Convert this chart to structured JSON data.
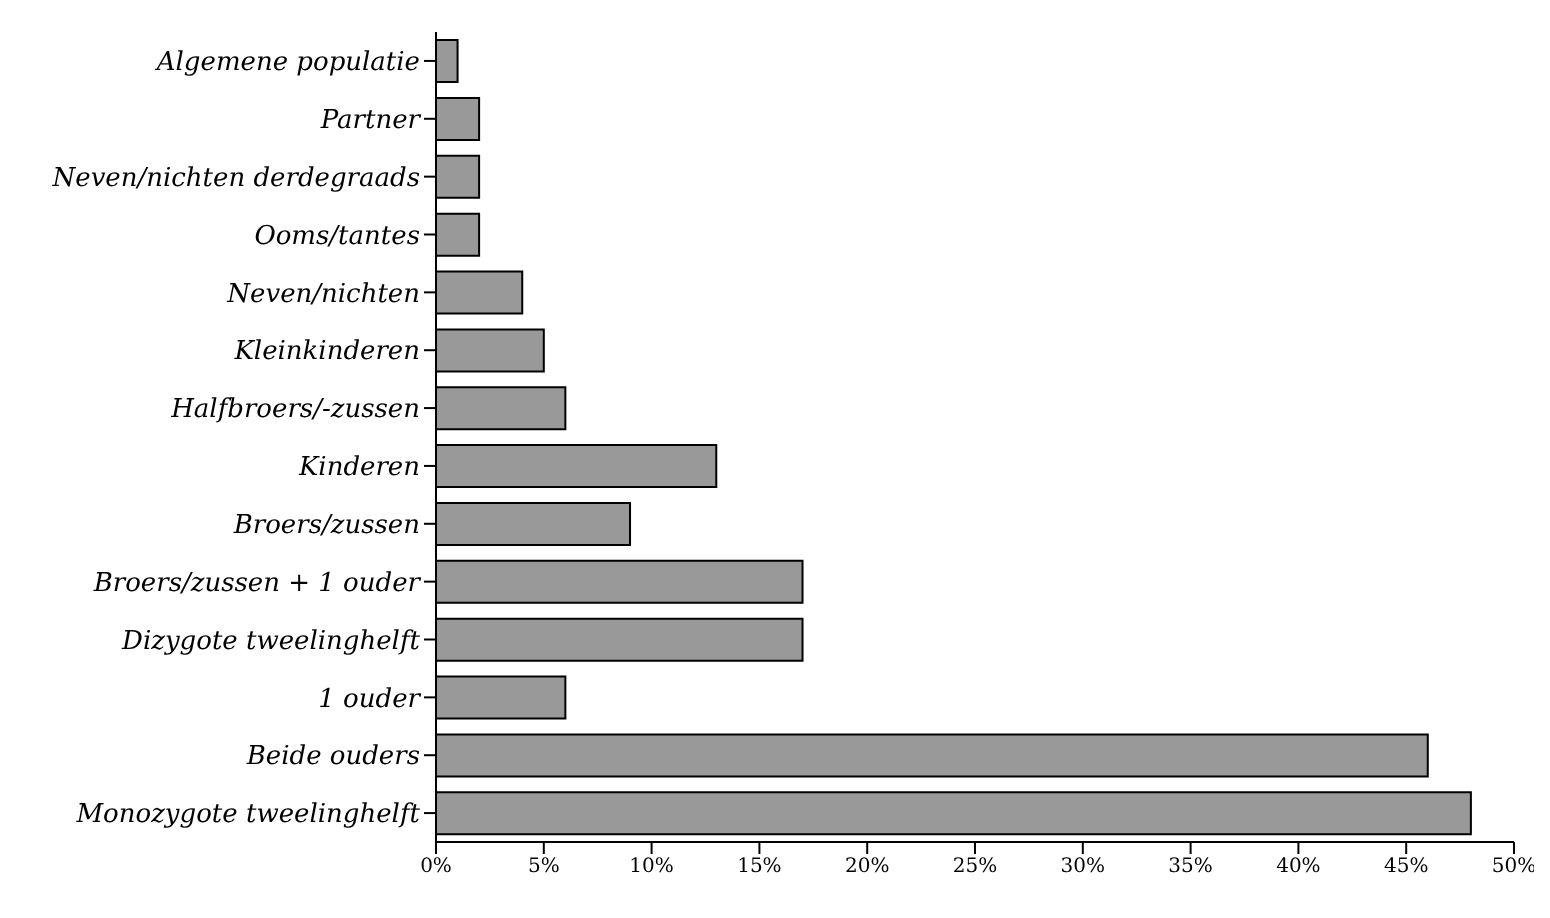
{
  "chart_data": {
    "type": "bar",
    "orientation": "horizontal",
    "categories": [
      "Algemene populatie",
      "Partner",
      "Neven/nichten derdegraads",
      "Ooms/tantes",
      "Neven/nichten",
      "Kleinkinderen",
      "Halfbroers/-zussen",
      "Kinderen",
      "Broers/zussen",
      "Broers/zussen + 1 ouder",
      "Dizygote tweelinghelft",
      "1 ouder",
      "Beide ouders",
      "Monozygote tweelinghelft"
    ],
    "values": [
      1,
      2,
      2,
      2,
      4,
      5,
      6,
      13,
      9,
      17,
      17,
      6,
      46,
      48
    ],
    "color": "#999999",
    "xlim": [
      0,
      50
    ],
    "xticks": [
      {
        "value": 0,
        "label": "0%"
      },
      {
        "value": 5,
        "label": "5%"
      },
      {
        "value": 10,
        "label": "10%"
      },
      {
        "value": 15,
        "label": "15%"
      },
      {
        "value": 20,
        "label": "20%"
      },
      {
        "value": 25,
        "label": "25%"
      },
      {
        "value": 30,
        "label": "30%"
      },
      {
        "value": 35,
        "label": "35%"
      },
      {
        "value": 40,
        "label": "40%"
      },
      {
        "value": 45,
        "label": "45%"
      },
      {
        "value": 50,
        "label": "50%"
      }
    ],
    "grid": false,
    "legend": false
  }
}
